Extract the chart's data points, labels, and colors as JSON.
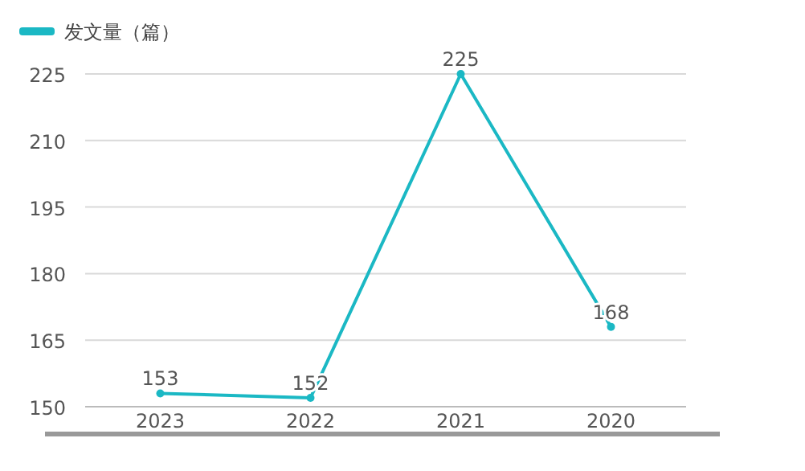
{
  "chart_data": {
    "type": "line",
    "categories": [
      "2023",
      "2022",
      "2021",
      "2020"
    ],
    "series": [
      {
        "name": "发文量（篇）",
        "color": "#1bb8c4",
        "values": [
          153,
          152,
          225,
          168
        ]
      }
    ],
    "ylim": [
      150,
      225
    ],
    "yticks": [
      150,
      165,
      180,
      195,
      210,
      225
    ],
    "grid": "y",
    "legend": "top left",
    "marker": "circle",
    "data_labels": true
  }
}
